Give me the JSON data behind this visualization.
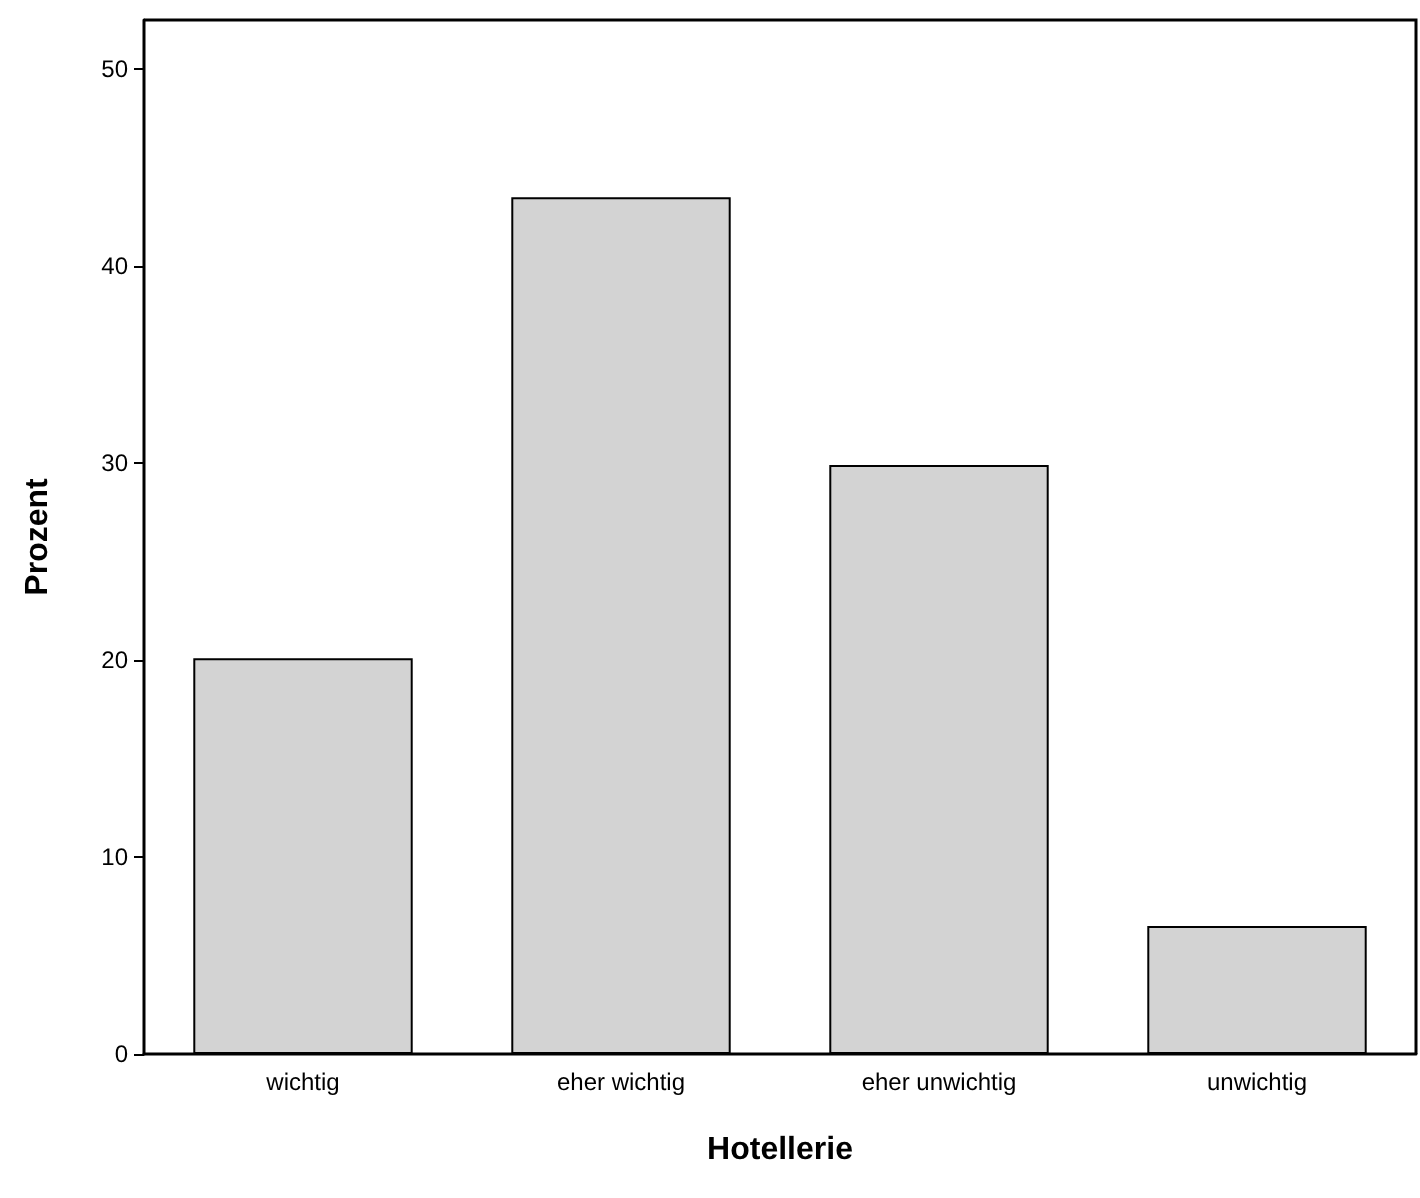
{
  "chart_data": {
    "type": "bar",
    "xlabel": "Hotellerie",
    "ylabel": "Prozent",
    "categories": [
      "wichtig",
      "eher wichtig",
      "eher unwichtig",
      "unwichtig"
    ],
    "values": [
      20.1,
      43.5,
      29.9,
      6.5
    ],
    "color": "#d3d3d3",
    "ylim": [
      0,
      52.5
    ],
    "yticks": [
      0,
      10,
      20,
      30,
      40,
      50
    ],
    "grid": false
  }
}
